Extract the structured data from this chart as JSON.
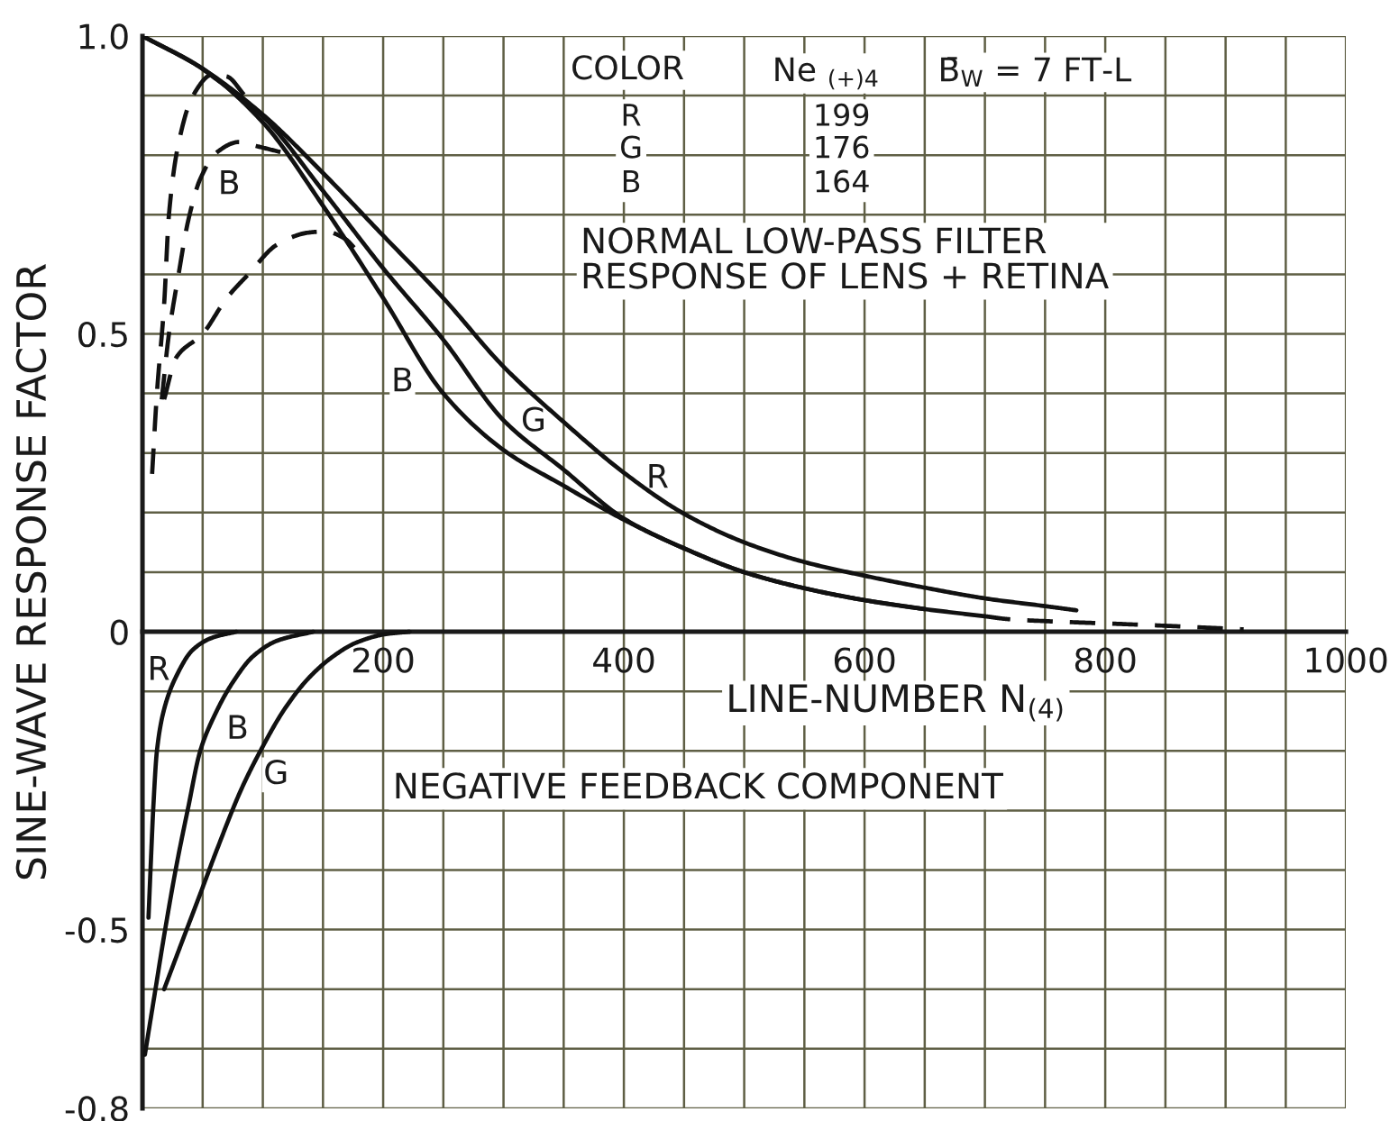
{
  "chart_data": {
    "type": "line",
    "xlabel": "LINE-NUMBER N$_{(4)}$",
    "ylabel": "SINE-WAVE RESPONSE FACTOR",
    "xlim": [
      0,
      1000
    ],
    "ylim": [
      -0.8,
      1.0
    ],
    "xticks": [
      {
        "value": 50,
        "label": null
      },
      {
        "value": 100,
        "label": null
      },
      {
        "value": 150,
        "label": null
      },
      200,
      {
        "value": 250,
        "label": null
      },
      {
        "value": 300,
        "label": null
      },
      {
        "value": 350,
        "label": null
      },
      400,
      {
        "value": 450,
        "label": null
      },
      {
        "value": 500,
        "label": null
      },
      {
        "value": 550,
        "label": null
      },
      600,
      {
        "value": 650,
        "label": null
      },
      {
        "value": 700,
        "label": null
      },
      {
        "value": 750,
        "label": null
      },
      800,
      {
        "value": 850,
        "label": null
      },
      {
        "value": 900,
        "label": null
      },
      {
        "value": 950,
        "label": null
      },
      1000
    ],
    "yticks": [
      -0.8,
      {
        "value": -0.7,
        "label": null
      },
      {
        "value": -0.6,
        "label": null
      },
      -0.5,
      {
        "value": -0.4,
        "label": null
      },
      {
        "value": -0.3,
        "label": null
      },
      {
        "value": -0.2,
        "label": null
      },
      {
        "value": -0.1,
        "label": null
      },
      0,
      {
        "value": 0.1,
        "label": null
      },
      {
        "value": 0.2,
        "label": null
      },
      {
        "value": 0.3,
        "label": null
      },
      {
        "value": 0.4,
        "label": null
      },
      0.5,
      {
        "value": 0.6,
        "label": null
      },
      {
        "value": 0.7,
        "label": null
      },
      {
        "value": 0.8,
        "label": null
      },
      {
        "value": 0.9,
        "label": null
      },
      {
        "value": 1,
        "label": "1.0"
      }
    ],
    "grid": true,
    "line_style": "solid",
    "series": [
      {
        "name": "R",
        "color": "#111111",
        "x": [
          0,
          50,
          100,
          150,
          200,
          250,
          300,
          350,
          400,
          450,
          500,
          550,
          600,
          650,
          700,
          750,
          776
        ],
        "values": [
          1.0,
          0.945,
          0.868,
          0.77,
          0.665,
          0.56,
          0.445,
          0.352,
          0.267,
          0.198,
          0.15,
          0.117,
          0.094,
          0.074,
          0.056,
          0.043,
          0.036
        ]
      },
      {
        "name": "G",
        "color": "#111111",
        "x": [
          50,
          100,
          150,
          200,
          250,
          300,
          350,
          400,
          450,
          500,
          550,
          600,
          650
        ],
        "values": [
          0.945,
          0.865,
          0.74,
          0.61,
          0.49,
          0.355,
          0.272,
          0.19,
          0.14,
          0.1,
          0.073,
          0.053,
          0.038
        ]
      },
      {
        "name": "B",
        "color": "#111111",
        "x": [
          0,
          50,
          100,
          150,
          200,
          250,
          300,
          350,
          400,
          450,
          500,
          550,
          600,
          650,
          700
        ],
        "values": [
          1.0,
          0.945,
          0.855,
          0.715,
          0.56,
          0.4,
          0.305,
          0.245,
          0.188,
          0.14,
          0.1,
          0.073,
          0.053,
          0.038,
          0.026
        ]
      },
      {
        "color": "#111111",
        "line_style": "dashed",
        "x": [
          8,
          12,
          18,
          22,
          30,
          42,
          58,
          70,
          85
        ],
        "values": [
          0.265,
          0.4,
          0.55,
          0.7,
          0.82,
          0.9,
          0.935,
          0.932,
          0.9
        ]
      },
      {
        "name": "B",
        "color": "#111111",
        "line_style": "dashed",
        "x": [
          16,
          22,
          30,
          38,
          48,
          62,
          80,
          95,
          115
        ],
        "values": [
          0.39,
          0.5,
          0.6,
          0.69,
          0.76,
          0.805,
          0.822,
          0.815,
          0.805
        ]
      },
      {
        "color": "#111111",
        "line_style": "dashed",
        "x": [
          18,
          28,
          50,
          70,
          88,
          112,
          138,
          152,
          168,
          178
        ],
        "values": [
          0.39,
          0.46,
          0.5,
          0.56,
          0.6,
          0.65,
          0.67,
          0.672,
          0.66,
          0.64
        ]
      },
      {
        "color": "#111111",
        "line_style": "dashed",
        "x": [
          700,
          720,
          760,
          800,
          850,
          915
        ],
        "values": [
          0.026,
          0.021,
          0.017,
          0.014,
          0.01,
          0.004
        ]
      },
      {
        "name": "R",
        "color": "#111111",
        "x": [
          5,
          7,
          9,
          12,
          18,
          28,
          42,
          58,
          78
        ],
        "values": [
          -0.48,
          -0.385,
          -0.295,
          -0.2,
          -0.13,
          -0.075,
          -0.03,
          -0.01,
          0
        ]
      },
      {
        "name": "B",
        "color": "#111111",
        "x": [
          2,
          10,
          18,
          28,
          38,
          48,
          60,
          75,
          92,
          112,
          142
        ],
        "values": [
          -0.71,
          -0.61,
          -0.51,
          -0.395,
          -0.295,
          -0.2,
          -0.14,
          -0.085,
          -0.041,
          -0.015,
          0
        ]
      },
      {
        "name": "G",
        "color": "#111111",
        "x": [
          18,
          32,
          48,
          62,
          82,
          98,
          118,
          138,
          158,
          178,
          202,
          222
        ],
        "values": [
          -0.6,
          -0.525,
          -0.44,
          -0.365,
          -0.265,
          -0.2,
          -0.13,
          -0.078,
          -0.042,
          -0.018,
          -0.004,
          0
        ]
      }
    ],
    "annotations": [
      "COLOR",
      "Ne $_{(+)4}$",
      "B̄$_{W}$ = 7 FT-L",
      "R",
      "199",
      "G",
      "176",
      "B",
      "164",
      "NORMAL LOW-PASS FILTER\nRESPONSE OF LENS + RETINA",
      "NEGATIVE FEEDBACK COMPONENT"
    ]
  }
}
